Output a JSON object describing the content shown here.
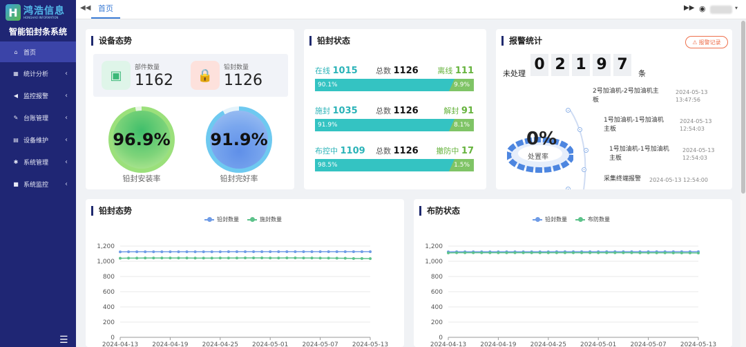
{
  "sidebar": {
    "logo_text": "鸿浩信息",
    "logo_sub": "HONGHAO INFORMATION",
    "system_title": "智能铅封条系统",
    "items": [
      {
        "label": "首页",
        "icon": "home-icon",
        "active": true
      },
      {
        "label": "统计分析",
        "icon": "calculator-icon",
        "expandable": true
      },
      {
        "label": "监控报警",
        "icon": "bullhorn-icon",
        "expandable": true
      },
      {
        "label": "台账管理",
        "icon": "wrench-icon",
        "expandable": true
      },
      {
        "label": "设备维护",
        "icon": "printer-icon",
        "expandable": true
      },
      {
        "label": "系统管理",
        "icon": "gear-icon",
        "expandable": true
      },
      {
        "label": "系统监控",
        "icon": "video-icon",
        "expandable": true
      }
    ]
  },
  "topbar": {
    "tab": "首页"
  },
  "device_status": {
    "title": "设备态势",
    "parts_label": "部件数量",
    "parts_value": "1162",
    "seals_label": "铅封数量",
    "seals_value": "1126",
    "install_rate": "96.9%",
    "install_rate_label": "铅封安装率",
    "install_rate_value": 0.969,
    "intact_rate": "91.9%",
    "intact_rate_label": "铅封完好率",
    "intact_rate_value": 0.919
  },
  "seal_status": {
    "title": "铅封状态",
    "rows": [
      {
        "left_label": "在线",
        "left_value": "1015",
        "total_label": "总数",
        "total_value": "1126",
        "right_label": "离线",
        "right_value": "111",
        "left_pct": "90.1%",
        "right_pct": "9.9%",
        "left_frac": 0.901
      },
      {
        "left_label": "施封",
        "left_value": "1035",
        "total_label": "总数",
        "total_value": "1126",
        "right_label": "解封",
        "right_value": "91",
        "left_pct": "91.9%",
        "right_pct": "8.1%",
        "left_frac": 0.919
      },
      {
        "left_label": "布控中",
        "left_value": "1109",
        "total_label": "总数",
        "total_value": "1126",
        "right_label": "撤防中",
        "right_value": "17",
        "left_pct": "98.5%",
        "right_pct": "1.5%",
        "left_frac": 0.985
      }
    ]
  },
  "alarm": {
    "title": "报警统计",
    "record_button": "报警记录",
    "unprocessed_label": "未处理",
    "digits": [
      "0",
      "2",
      "1",
      "9",
      "7"
    ],
    "unit": "条",
    "rate": "0%",
    "rate_label": "处置率",
    "items": [
      {
        "text_lines": [
          "2号加油机-2号加油机主",
          "板"
        ],
        "time_lines": [
          "2024-05-13",
          "13:47:56"
        ]
      },
      {
        "text_lines": [
          "1号加油机-1号加油机",
          "主板"
        ],
        "time_lines": [
          "2024-05-13",
          "12:54:03"
        ]
      },
      {
        "text_lines": [
          "1号加油机-1号加油机",
          "主板"
        ],
        "time_lines": [
          "2024-05-13",
          "12:54:03"
        ]
      },
      {
        "text_lines": [
          "采集终端报警"
        ],
        "time_lines": [
          "2024-05-13 12:54:00"
        ]
      }
    ]
  },
  "colors": {
    "series_blue": "#6e9be6",
    "series_green": "#5cc28a",
    "accent": "#34c3c2"
  },
  "chart_data": [
    {
      "type": "line",
      "title": "铅封态势",
      "x": [
        "2024-04-13",
        "2024-04-14",
        "2024-04-15",
        "2024-04-16",
        "2024-04-17",
        "2024-04-18",
        "2024-04-19",
        "2024-04-20",
        "2024-04-21",
        "2024-04-22",
        "2024-04-23",
        "2024-04-24",
        "2024-04-25",
        "2024-04-26",
        "2024-04-27",
        "2024-04-28",
        "2024-04-29",
        "2024-04-30",
        "2024-05-01",
        "2024-05-02",
        "2024-05-03",
        "2024-05-04",
        "2024-05-05",
        "2024-05-06",
        "2024-05-07",
        "2024-05-08",
        "2024-05-09",
        "2024-05-10",
        "2024-05-11",
        "2024-05-12",
        "2024-05-13"
      ],
      "tick_labels": [
        "2024-04-13",
        "2024-04-19",
        "2024-04-25",
        "2024-05-01",
        "2024-05-07",
        "2024-05-13"
      ],
      "yticks": [
        "0",
        "200",
        "400",
        "600",
        "800",
        "1,000",
        "1,200"
      ],
      "ylim": [
        0,
        1200
      ],
      "series": [
        {
          "name": "铅封数量",
          "color": "#6e9be6",
          "values": [
            1124,
            1125,
            1125,
            1125,
            1125,
            1125,
            1125,
            1125,
            1125,
            1125,
            1125,
            1125,
            1125,
            1126,
            1126,
            1126,
            1126,
            1126,
            1126,
            1126,
            1126,
            1126,
            1126,
            1126,
            1126,
            1126,
            1126,
            1126,
            1126,
            1126,
            1126
          ]
        },
        {
          "name": "施封数量",
          "color": "#5cc28a",
          "values": [
            1040,
            1042,
            1042,
            1043,
            1043,
            1043,
            1043,
            1043,
            1043,
            1042,
            1042,
            1042,
            1043,
            1043,
            1043,
            1044,
            1044,
            1044,
            1043,
            1043,
            1044,
            1044,
            1043,
            1043,
            1042,
            1042,
            1041,
            1040,
            1036,
            1036,
            1035
          ]
        }
      ]
    },
    {
      "type": "line",
      "title": "布防状态",
      "x": [
        "2024-04-13",
        "2024-04-14",
        "2024-04-15",
        "2024-04-16",
        "2024-04-17",
        "2024-04-18",
        "2024-04-19",
        "2024-04-20",
        "2024-04-21",
        "2024-04-22",
        "2024-04-23",
        "2024-04-24",
        "2024-04-25",
        "2024-04-26",
        "2024-04-27",
        "2024-04-28",
        "2024-04-29",
        "2024-04-30",
        "2024-05-01",
        "2024-05-02",
        "2024-05-03",
        "2024-05-04",
        "2024-05-05",
        "2024-05-06",
        "2024-05-07",
        "2024-05-08",
        "2024-05-09",
        "2024-05-10",
        "2024-05-11",
        "2024-05-12",
        "2024-05-13"
      ],
      "tick_labels": [
        "2024-04-13",
        "2024-04-19",
        "2024-04-25",
        "2024-05-01",
        "2024-05-07",
        "2024-05-13"
      ],
      "yticks": [
        "0",
        "200",
        "400",
        "600",
        "800",
        "1,000",
        "1,200"
      ],
      "ylim": [
        0,
        1200
      ],
      "series": [
        {
          "name": "铅封数量",
          "color": "#6e9be6",
          "values": [
            1124,
            1125,
            1125,
            1125,
            1125,
            1125,
            1125,
            1125,
            1125,
            1125,
            1125,
            1125,
            1125,
            1126,
            1126,
            1126,
            1126,
            1126,
            1126,
            1126,
            1126,
            1126,
            1126,
            1126,
            1126,
            1126,
            1126,
            1126,
            1126,
            1126,
            1126
          ]
        },
        {
          "name": "布防数量",
          "color": "#5cc28a",
          "values": [
            1110,
            1112,
            1112,
            1113,
            1113,
            1113,
            1113,
            1113,
            1113,
            1113,
            1113,
            1113,
            1113,
            1112,
            1112,
            1112,
            1112,
            1112,
            1112,
            1112,
            1112,
            1112,
            1112,
            1111,
            1111,
            1111,
            1111,
            1110,
            1110,
            1110,
            1109
          ]
        }
      ]
    }
  ]
}
